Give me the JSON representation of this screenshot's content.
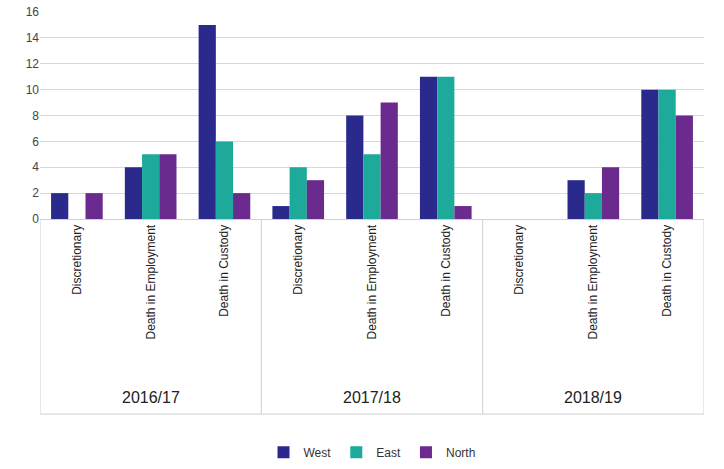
{
  "chart_data": {
    "type": "bar",
    "categories": [
      [
        "2016/17",
        "Discretionary"
      ],
      [
        "2016/17",
        "Death in Employment"
      ],
      [
        "2016/17",
        "Death in Custody"
      ],
      [
        "2017/18",
        "Discretionary"
      ],
      [
        "2017/18",
        "Death in Employment"
      ],
      [
        "2017/18",
        "Death in Custody"
      ],
      [
        "2018/19",
        "Discretionary"
      ],
      [
        "2018/19",
        "Death in Employment"
      ],
      [
        "2018/19",
        "Death in Custody"
      ]
    ],
    "series": [
      {
        "name": "West",
        "color": "#2a2a8c",
        "values": [
          2,
          4,
          15,
          1,
          8,
          11,
          0,
          3,
          10
        ]
      },
      {
        "name": "East",
        "color": "#1daa9a",
        "values": [
          0,
          5,
          6,
          4,
          5,
          11,
          0,
          2,
          10
        ]
      },
      {
        "name": "North",
        "color": "#6b2a8e",
        "values": [
          2,
          5,
          2,
          3,
          9,
          1,
          0,
          4,
          8
        ]
      }
    ],
    "ylim": [
      0,
      16
    ],
    "yticks": [
      0,
      2,
      4,
      6,
      8,
      10,
      12,
      14,
      16
    ],
    "grid": true,
    "legend": "bottom"
  }
}
